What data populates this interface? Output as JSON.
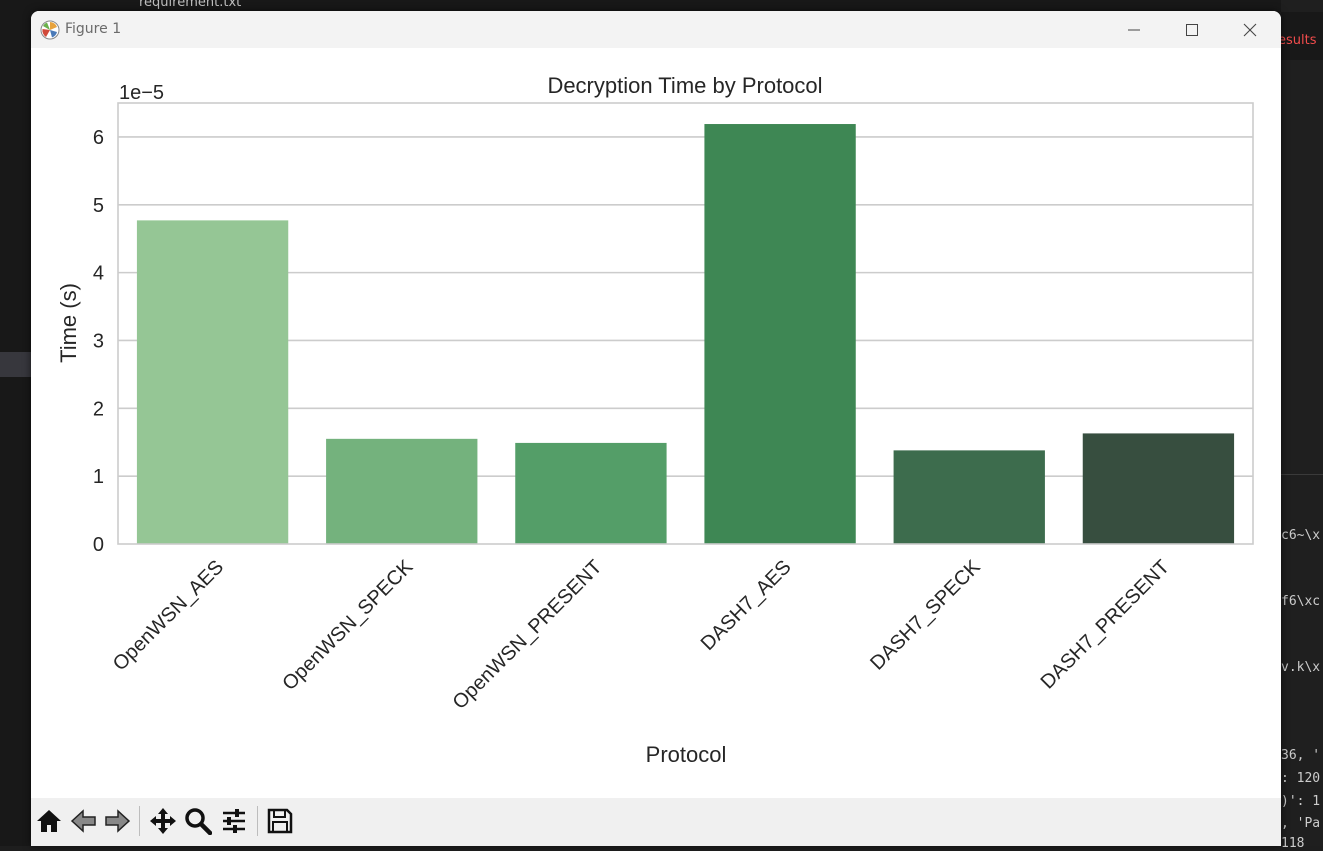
{
  "background": {
    "top_file": "requirement.txt",
    "right_results": "esults",
    "terminal_lines": [
      "c6~\\x",
      "f6\\xc",
      "v.k\\x",
      "36, '",
      ": 120",
      ")': 1",
      ", 'Pa",
      "118"
    ]
  },
  "window": {
    "title": "Figure 1"
  },
  "toolbar": {
    "home": "home-icon",
    "back": "back-arrow-icon",
    "forward": "forward-arrow-icon",
    "pan": "pan-icon",
    "zoom": "zoom-icon",
    "configure": "configure-subplots-icon",
    "save": "save-icon"
  },
  "chart_data": {
    "type": "bar",
    "title": "Decryption Time by Protocol",
    "xlabel": "Protocol",
    "ylabel": "Time (s)",
    "offset_label": "1e−5",
    "categories": [
      "OpenWSN_AES",
      "OpenWSN_SPECK",
      "OpenWSN_PRESENT",
      "DASH7_AES",
      "DASH7_SPECK",
      "DASH7_PRESENT"
    ],
    "values": [
      4.77e-05,
      1.55e-05,
      1.49e-05,
      6.19e-05,
      1.38e-05,
      1.63e-05
    ],
    "colors": [
      "#95c695",
      "#74b27d",
      "#549e68",
      "#3e8754",
      "#3d6c4d",
      "#374e3f"
    ],
    "yticks": [
      "0",
      "1",
      "2",
      "3",
      "4",
      "5",
      "6"
    ],
    "ylim": [
      0,
      6.5e-05
    ],
    "grid": true
  }
}
